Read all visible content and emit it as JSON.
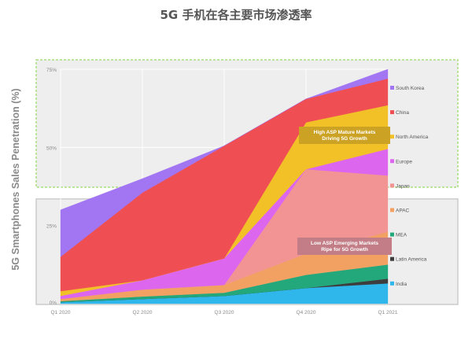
{
  "chart_data": {
    "type": "area",
    "stacked": true,
    "title": "5G 手机在各主要市场渗透率",
    "ylabel": "5G Smartphones Sales Penetration (%)",
    "xlabel": "",
    "categories": [
      "Q1 2020",
      "Q2 2020",
      "Q3 2020",
      "Q4 2020",
      "Q1 2021"
    ],
    "y_ticks": [
      "0%",
      "25%",
      "50%",
      "75%"
    ],
    "ylim": [
      0,
      75
    ],
    "y_unit": "%",
    "grid": true,
    "legend_position": "right",
    "series": [
      {
        "name": "India",
        "color": "#2fb6ea",
        "values": [
          0.5,
          1.5,
          2.5,
          5,
          6.5
        ]
      },
      {
        "name": "Latin America",
        "color": "#3d3d3d",
        "values": [
          0,
          0,
          0,
          0,
          1.5
        ]
      },
      {
        "name": "MEA",
        "color": "#23a87c",
        "values": [
          0.3,
          0.8,
          1.0,
          4.2,
          4.5
        ]
      },
      {
        "name": "APAC",
        "color": "#f2a163",
        "values": [
          0.7,
          2.2,
          2.5,
          6.8,
          10.5
        ]
      },
      {
        "name": "Japan",
        "color": "#f29494",
        "values": [
          0,
          0,
          0,
          27,
          18
        ]
      },
      {
        "name": "Europe",
        "color": "#dd66ee",
        "values": [
          1.0,
          3.0,
          8.5,
          0,
          8.5
        ]
      },
      {
        "name": "North America",
        "color": "#f2c027",
        "values": [
          1.5,
          0,
          0,
          15,
          14
        ]
      },
      {
        "name": "China",
        "color": "#ef4e53",
        "values": [
          11,
          28,
          36,
          7.5,
          8.5
        ]
      },
      {
        "name": "South Korea",
        "color": "#a275f2",
        "values": [
          15,
          4.5,
          0,
          0,
          3
        ]
      }
    ],
    "legend_order": [
      "South Korea",
      "China",
      "North America",
      "Europe",
      "Japan",
      "APAC",
      "MEA",
      "Latin America",
      "India"
    ],
    "annotations": [
      {
        "text_lines": [
          "High ASP Mature Markets",
          "Driving 5G Growth"
        ],
        "color": "#cba224",
        "band": [
          37.5,
          75
        ],
        "band_border": "#a8de7c"
      },
      {
        "text_lines": [
          "Low ASP Emerging Markets",
          "Ripe for 5G Growth"
        ],
        "color": "#c27d86",
        "band": [
          0,
          32.5
        ],
        "band_border": "#cccccc"
      }
    ]
  }
}
